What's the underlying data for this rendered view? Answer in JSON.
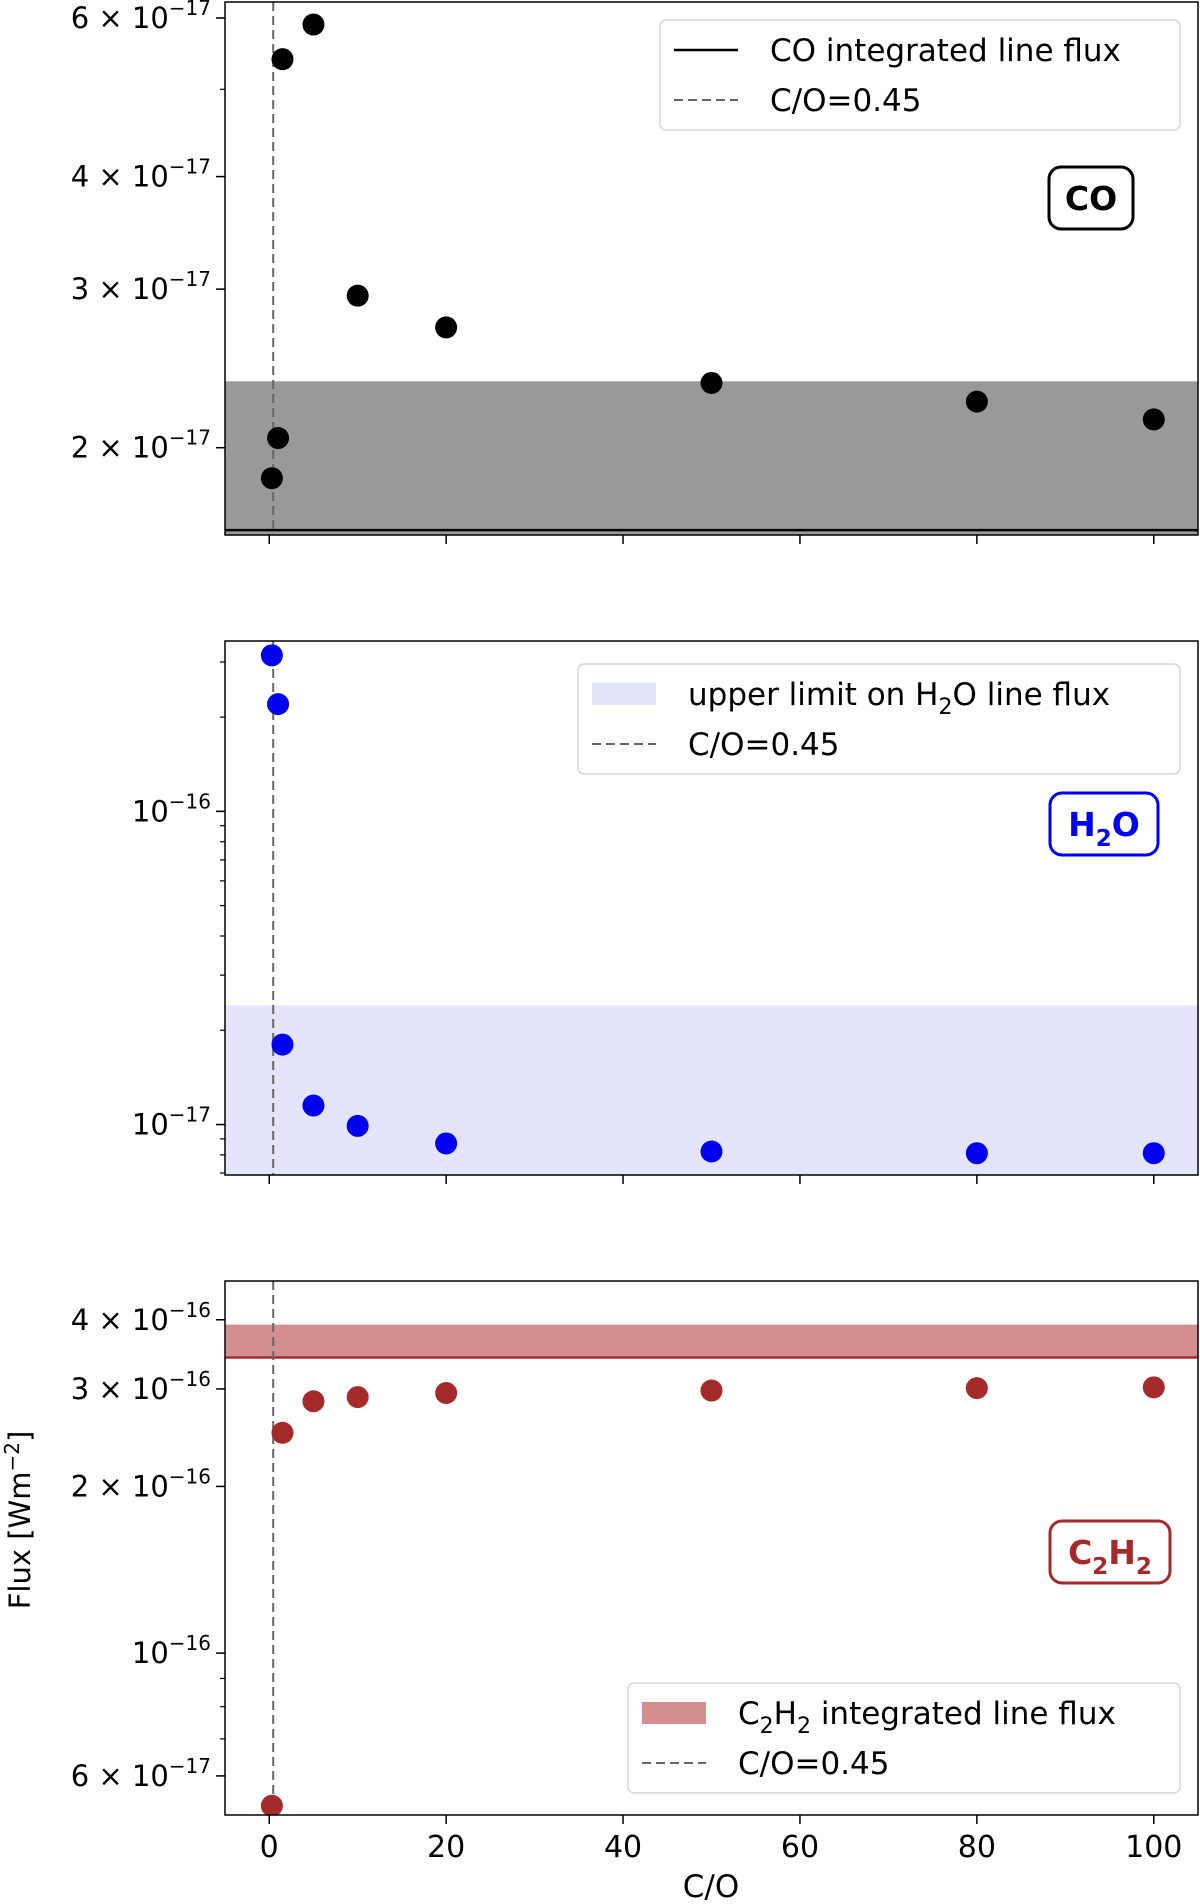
{
  "figure": {
    "ylabel_main": "Flux [Wm",
    "ylabel_exp": "−2",
    "ylabel_close": "]",
    "xlabel": "C/O"
  },
  "chart_data": [
    {
      "type": "scatter",
      "panel": "CO",
      "x": [
        0.3,
        1,
        1.5,
        5,
        10,
        20,
        50,
        80,
        100
      ],
      "y": [
        1.85e-17,
        2.05e-17,
        5.4e-17,
        5.9e-17,
        2.95e-17,
        2.72e-17,
        2.36e-17,
        2.25e-17,
        2.15e-17
      ],
      "marker_color": "#000000",
      "yscale": "log",
      "xlim": [
        -5,
        105
      ],
      "ylim": [
        1.6e-17,
        6.25e-17
      ],
      "yticks": [
        {
          "value": 2e-17,
          "mant": "2",
          "exp": "−17"
        },
        {
          "value": 3e-17,
          "mant": "3",
          "exp": "−17"
        },
        {
          "value": 4e-17,
          "mant": "4",
          "exp": "−17"
        },
        {
          "value": 6e-17,
          "mant": "6",
          "exp": "−17"
        }
      ],
      "band": {
        "y0": 1.6e-17,
        "y1": 2.37e-17,
        "color": "#999999"
      },
      "hline": {
        "y": 1.62e-17,
        "color": "#000000"
      },
      "vline": {
        "x": 0.45,
        "color": "#666666"
      },
      "badge": {
        "text": "CO",
        "sub": "",
        "tail": "",
        "color": "#000000"
      },
      "legend_placement": "top-right",
      "legend": [
        {
          "kind": "line",
          "text": "CO integrated line flux",
          "sub": "",
          "tail": "",
          "color": "#000000"
        },
        {
          "kind": "dash",
          "text": "C/O=0.45",
          "sub": "",
          "tail": "",
          "color": "#666666"
        }
      ]
    },
    {
      "type": "scatter",
      "panel": "H2O",
      "x": [
        0.3,
        1,
        1.5,
        5,
        10,
        20,
        50,
        80,
        100
      ],
      "y": [
        3.15e-16,
        2.2e-16,
        1.8e-17,
        1.15e-17,
        9.9e-18,
        8.7e-18,
        8.2e-18,
        8.1e-18,
        8.1e-18
      ],
      "marker_color": "#0000ee",
      "yscale": "log",
      "xlim": [
        -5,
        105
      ],
      "ylim": [
        6.9e-18,
        3.5e-16
      ],
      "yticks": [
        {
          "value": 1e-17,
          "mant": "10",
          "exp": "−17"
        },
        {
          "value": 1e-16,
          "mant": "10",
          "exp": "−16"
        }
      ],
      "band": {
        "y0": 6.9e-18,
        "y1": 2.4e-17,
        "color": "#e4e4fb"
      },
      "vline": {
        "x": 0.45,
        "color": "#666666"
      },
      "badge": {
        "text": "H",
        "sub": "2",
        "tail": "O",
        "color": "#0000ee"
      },
      "legend_placement": "top-right",
      "legend": [
        {
          "kind": "patch",
          "text": "upper limit on H",
          "sub": "2",
          "tail": "O line flux",
          "color": "#e4e4fb"
        },
        {
          "kind": "dash",
          "text": "C/O=0.45",
          "sub": "",
          "tail": "",
          "color": "#666666"
        }
      ]
    },
    {
      "type": "scatter",
      "panel": "C2H2",
      "x": [
        0.3,
        1.5,
        5,
        10,
        20,
        50,
        80,
        100
      ],
      "y": [
        5.3e-17,
        2.5e-16,
        2.85e-16,
        2.9e-16,
        2.95e-16,
        2.98e-16,
        3.01e-16,
        3.02e-16
      ],
      "marker_color": "#a52a2a",
      "yscale": "log",
      "xlim": [
        -5,
        105
      ],
      "ylim": [
        5.1e-17,
        4.7e-16
      ],
      "yticks": [
        {
          "value": 6e-17,
          "mant": "6",
          "exp": "−17"
        },
        {
          "value": 1e-16,
          "mant": "10",
          "exp": "−16"
        },
        {
          "value": 2e-16,
          "mant": "2",
          "exp": "−16"
        },
        {
          "value": 3e-16,
          "mant": "3",
          "exp": "−16"
        },
        {
          "value": 4e-16,
          "mant": "4",
          "exp": "−16"
        }
      ],
      "xticks": [
        0,
        20,
        40,
        60,
        80,
        100
      ],
      "band": {
        "y0": 3.42e-16,
        "y1": 3.92e-16,
        "color": "#d38f8f"
      },
      "hline": {
        "y": 3.42e-16,
        "color": "#a52a2a"
      },
      "vline": {
        "x": 0.45,
        "color": "#666666"
      },
      "badge": {
        "text": "C",
        "sub": "2",
        "tail": "H",
        "sub2": "2",
        "color": "#a52a2a"
      },
      "legend_placement": "lower-right",
      "legend": [
        {
          "kind": "patch",
          "text": "C",
          "sub": "2",
          "tail": "H",
          "sub2": "2",
          "tail2": " integrated line flux",
          "color": "#d38f8f"
        },
        {
          "kind": "dash",
          "text": "C/O=0.45",
          "sub": "",
          "tail": "",
          "color": "#666666"
        }
      ]
    }
  ]
}
